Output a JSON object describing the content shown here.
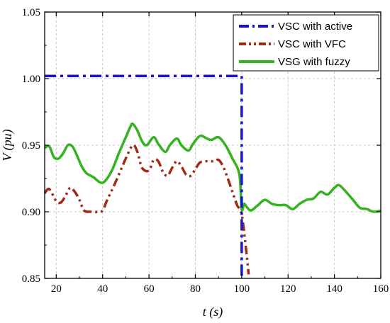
{
  "chart_data": {
    "type": "line",
    "title": "",
    "xlabel": "t (s)",
    "ylabel": "V (pu)",
    "xlim": [
      15,
      160
    ],
    "ylim": [
      0.85,
      1.05
    ],
    "xticks": [
      20,
      40,
      60,
      80,
      100,
      120,
      140,
      160
    ],
    "xtick_labels": [
      "20",
      "40",
      "60",
      "80",
      "100",
      "120",
      "140",
      "160"
    ],
    "yticks": [
      0.85,
      0.9,
      0.95,
      1.0,
      1.05
    ],
    "ytick_labels": [
      "0.85",
      "0.90",
      "0.95",
      "1.00",
      "1.05"
    ],
    "grid": true,
    "legend_position": "top-right",
    "series": [
      {
        "name": "VSC with active",
        "color": "#1515d6",
        "style": "dash-dot",
        "x": [
          15,
          100,
          100
        ],
        "y": [
          1.002,
          1.002,
          0.85
        ]
      },
      {
        "name": "VSC with VFC",
        "color": "#a02a12",
        "style": "dash-dot-dot",
        "x": [
          15,
          17,
          20,
          22,
          24,
          26,
          28,
          30,
          32,
          35,
          38,
          40,
          42,
          45,
          48,
          50,
          53,
          55,
          57,
          60,
          62,
          64,
          66,
          68,
          70,
          72,
          74,
          76,
          78,
          80,
          82,
          85,
          88,
          90,
          92,
          94,
          96,
          98,
          100,
          102,
          103
        ],
        "y": [
          0.914,
          0.917,
          0.908,
          0.907,
          0.912,
          0.918,
          0.915,
          0.909,
          0.901,
          0.9,
          0.9,
          0.901,
          0.909,
          0.92,
          0.932,
          0.94,
          0.95,
          0.945,
          0.933,
          0.931,
          0.939,
          0.938,
          0.93,
          0.927,
          0.933,
          0.938,
          0.934,
          0.928,
          0.927,
          0.932,
          0.937,
          0.938,
          0.938,
          0.939,
          0.934,
          0.925,
          0.915,
          0.905,
          0.898,
          0.87,
          0.853
        ]
      },
      {
        "name": "VSG with fuzzy",
        "color": "#34b21f",
        "style": "solid",
        "x": [
          15,
          17,
          19,
          21,
          23,
          25,
          27,
          29,
          31,
          33,
          36,
          39,
          41,
          44,
          47,
          50,
          52,
          53,
          55,
          57,
          59,
          62,
          64,
          67,
          69,
          72,
          74,
          77,
          79,
          82,
          85,
          87,
          90,
          93,
          96,
          99,
          100,
          101,
          102,
          104,
          107,
          110,
          113,
          116,
          119,
          122,
          125,
          128,
          131,
          134,
          137,
          140,
          142,
          145,
          148,
          151,
          154,
          157,
          160
        ],
        "y": [
          0.948,
          0.949,
          0.941,
          0.94,
          0.944,
          0.95,
          0.949,
          0.942,
          0.934,
          0.929,
          0.926,
          0.922,
          0.923,
          0.931,
          0.944,
          0.956,
          0.964,
          0.966,
          0.961,
          0.953,
          0.95,
          0.956,
          0.951,
          0.945,
          0.95,
          0.955,
          0.95,
          0.946,
          0.951,
          0.957,
          0.955,
          0.954,
          0.956,
          0.95,
          0.94,
          0.928,
          0.902,
          0.906,
          0.904,
          0.901,
          0.905,
          0.909,
          0.906,
          0.905,
          0.905,
          0.902,
          0.906,
          0.909,
          0.91,
          0.915,
          0.913,
          0.918,
          0.92,
          0.915,
          0.909,
          0.903,
          0.902,
          0.9,
          0.901
        ]
      }
    ]
  }
}
